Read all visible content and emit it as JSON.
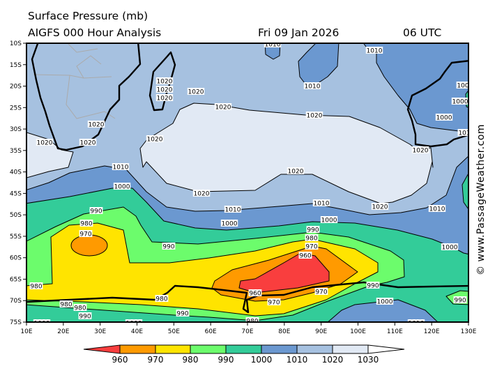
{
  "header": {
    "title": "Surface Pressure (mb)",
    "model": "AIGFS 000 Hour Analysis",
    "date": "Fri 09 Jan 2026",
    "time": "06 UTC"
  },
  "watermark": "© www.PassageWeather.com",
  "colors": {
    "lt960": "#f93e3e",
    "c960_970": "#ff9a00",
    "c970_980": "#ffe400",
    "c980_990": "#6cfc6c",
    "c990_1000": "#33cc99",
    "c1000_1010": "#6b98d0",
    "c1010_1020": "#a6c1e0",
    "c1020_1030": "#e1e9f4",
    "gt1030": "#ffffff"
  },
  "axes": {
    "lat_ticks": [
      "10S",
      "15S",
      "20S",
      "25S",
      "30S",
      "35S",
      "40S",
      "45S",
      "50S",
      "55S",
      "60S",
      "65S",
      "70S",
      "75S"
    ],
    "lon_ticks": [
      "10E",
      "20E",
      "30E",
      "40E",
      "50E",
      "60E",
      "70E",
      "80E",
      "90E",
      "100E",
      "110E",
      "120E",
      "130E"
    ]
  },
  "map": {
    "contour_labels": [
      "1010",
      "1010",
      "1020",
      "1020",
      "1020",
      "1020",
      "1010",
      "1020",
      "1020",
      "100",
      "1000",
      "1000",
      "101",
      "1020",
      "1020",
      "1020",
      "1020",
      "1020",
      "1010",
      "1020",
      "1020",
      "1010",
      "1010",
      "1020",
      "1010",
      "1000",
      "1000",
      "1000",
      "990",
      "980",
      "970",
      "990",
      "990",
      "980",
      "970",
      "960",
      "1000",
      "980",
      "960",
      "970",
      "990",
      "980",
      "970",
      "1000",
      "990",
      "980",
      "980",
      "990",
      "990",
      "1000",
      "1000",
      "980",
      "1010"
    ]
  },
  "legend": {
    "labels": [
      "960",
      "970",
      "980",
      "990",
      "1000",
      "1010",
      "1020",
      "1030"
    ]
  }
}
